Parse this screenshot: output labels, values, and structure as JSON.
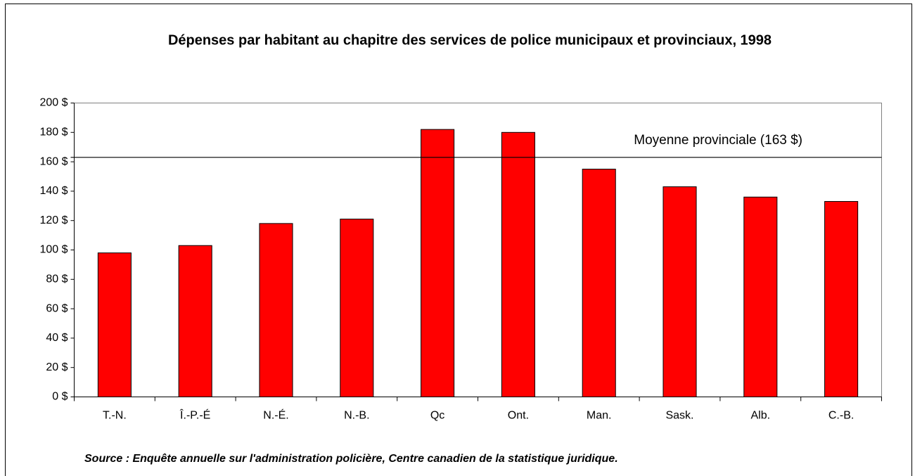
{
  "chart_data": {
    "type": "bar",
    "title": "Dépenses par habitant au chapitre des services de police municipaux et provinciaux, 1998",
    "categories": [
      "T.-N.",
      "Î.-P.-É",
      "N.-É.",
      "N.-B.",
      "Qc",
      "Ont.",
      "Man.",
      "Sask.",
      "Alb.",
      "C.-B."
    ],
    "values": [
      98,
      103,
      118,
      121,
      182,
      180,
      155,
      143,
      136,
      133
    ],
    "color": "#ff0000",
    "ylim": [
      0,
      200
    ],
    "yticks": [
      {
        "value": 0,
        "label": "0 $"
      },
      {
        "value": 20,
        "label": "20 $"
      },
      {
        "value": 40,
        "label": "40 $"
      },
      {
        "value": 60,
        "label": "60 $"
      },
      {
        "value": 80,
        "label": "80 $"
      },
      {
        "value": 100,
        "label": "100 $"
      },
      {
        "value": 120,
        "label": "120 $"
      },
      {
        "value": 140,
        "label": "140 $"
      },
      {
        "value": 160,
        "label": "160 $"
      },
      {
        "value": 180,
        "label": "180 $"
      },
      {
        "value": 200,
        "label": "200 $"
      }
    ],
    "grid": false,
    "reference_line": {
      "value": 163,
      "label": "Moyenne provinciale (163 $)"
    },
    "source": "Source : Enquête annuelle sur l'administration policière, Centre canadien de la statistique juridique."
  }
}
